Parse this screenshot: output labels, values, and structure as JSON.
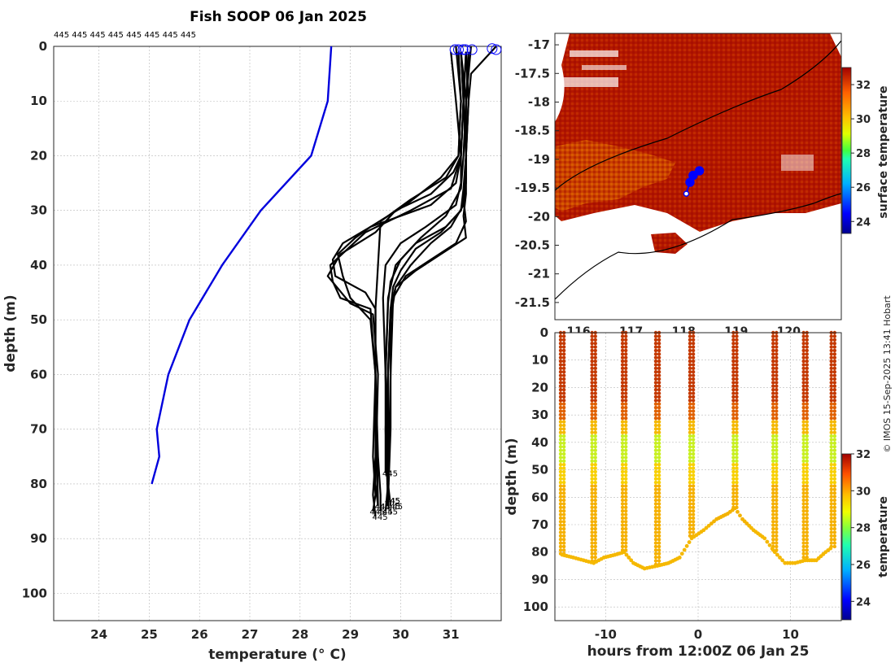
{
  "title": "Fish SOOP 06 Jan 2025",
  "top_labels": "445 445 445 445 445 445 445 445",
  "credit": "© IMOS 15-Sep-2025 13:41 Hobart",
  "profile_label": "445",
  "colors": {
    "climatology": "#0000dd",
    "profiles": "#000000",
    "marker": "#0000ff"
  },
  "chart_data": [
    {
      "type": "line",
      "name": "temperature-profiles",
      "xlabel": "temperature (° C)",
      "ylabel": "depth (m)",
      "xlim": [
        23.1,
        32.0
      ],
      "ylim": [
        105,
        0
      ],
      "xticks": [
        "24",
        "25",
        "26",
        "27",
        "28",
        "29",
        "30",
        "31"
      ],
      "yticks": [
        "0",
        "10",
        "20",
        "30",
        "40",
        "50",
        "60",
        "70",
        "80",
        "90",
        "100"
      ],
      "series": [
        {
          "name": "climatology",
          "x": [
            28.62,
            28.55,
            28.22,
            27.22,
            26.45,
            25.8,
            25.38,
            25.15,
            25.2,
            25.05
          ],
          "y": [
            0,
            10,
            20,
            30,
            40,
            50,
            60,
            70,
            75,
            80
          ]
        },
        {
          "name": "profile-1",
          "x": [
            31.1,
            31.2,
            31.15,
            30.9,
            30.2,
            29.6,
            29.55,
            29.5,
            29.5,
            29.55,
            29.6,
            29.6
          ],
          "y": [
            0,
            10,
            20,
            24,
            28,
            32,
            40,
            48,
            60,
            75,
            82,
            85
          ]
        },
        {
          "name": "profile-2",
          "x": [
            31.2,
            31.25,
            31.2,
            31.1,
            30.6,
            29.4,
            29.1,
            28.75,
            28.85,
            29.0,
            29.4,
            29.5,
            29.5,
            29.45,
            29.5
          ],
          "y": [
            1,
            10,
            20,
            25,
            29,
            33,
            35,
            38,
            42,
            46,
            50,
            60,
            75,
            82,
            86
          ]
        },
        {
          "name": "profile-3",
          "x": [
            31.3,
            31.25,
            31.2,
            31.0,
            30.2,
            29.3,
            28.95,
            28.6,
            28.65,
            28.8,
            29.4,
            29.5,
            29.45,
            29.5,
            29.45
          ],
          "y": [
            1,
            10,
            20,
            26,
            30,
            34,
            37,
            40,
            43,
            46,
            48,
            60,
            75,
            82,
            85
          ]
        },
        {
          "name": "profile-4",
          "x": [
            31.0,
            31.1,
            31.2,
            31.05,
            30.6,
            29.9,
            29.5,
            28.8,
            28.55,
            29.0,
            29.45,
            29.55,
            29.5,
            29.55
          ],
          "y": [
            1,
            10,
            20,
            23,
            27,
            30,
            34,
            38,
            42,
            47,
            49,
            60,
            80,
            84
          ]
        },
        {
          "name": "profile-5",
          "x": [
            31.3,
            31.35,
            31.3,
            31.3,
            31.2,
            30.8,
            30.3,
            30.0,
            29.85,
            29.8,
            29.75,
            29.75,
            29.8
          ],
          "y": [
            1,
            10,
            20,
            25,
            30,
            34,
            37,
            41,
            44,
            48,
            60,
            80,
            84
          ]
        },
        {
          "name": "profile-6",
          "x": [
            31.4,
            31.3,
            31.25,
            31.2,
            30.9,
            30.4,
            30.0,
            29.8,
            29.75,
            29.7,
            29.75,
            29.7
          ],
          "y": [
            0,
            10,
            20,
            26,
            31,
            35,
            39,
            43,
            47,
            60,
            80,
            85
          ]
        },
        {
          "name": "profile-7",
          "x": [
            31.2,
            31.25,
            31.3,
            31.3,
            31.25,
            31.0,
            30.6,
            30.2,
            29.9,
            29.8,
            29.7,
            29.75
          ],
          "y": [
            1,
            10,
            20,
            24,
            29,
            33,
            36,
            40,
            44,
            48,
            70,
            84
          ]
        },
        {
          "name": "profile-8",
          "x": [
            31.35,
            31.3,
            31.3,
            31.3,
            31.25,
            31.3,
            30.8,
            30.3,
            29.9,
            29.8,
            29.8,
            29.75
          ],
          "y": [
            1,
            10,
            20,
            27,
            31,
            35,
            38,
            41,
            44,
            50,
            70,
            83
          ]
        },
        {
          "name": "profile-9",
          "x": [
            31.9,
            31.4,
            31.35,
            31.3,
            31.25,
            31.3,
            31.1,
            30.6,
            30.1,
            29.85,
            29.8,
            29.75
          ],
          "y": [
            0,
            5,
            10,
            20,
            28,
            32,
            36,
            39,
            42,
            46,
            60,
            83
          ]
        },
        {
          "name": "profile-10",
          "x": [
            31.2,
            31.3,
            31.3,
            31.25,
            31.2,
            30.9,
            30.3,
            29.9,
            29.75,
            29.7,
            29.7
          ],
          "y": [
            1,
            10,
            20,
            26,
            30,
            33,
            36,
            40,
            46,
            60,
            78
          ]
        },
        {
          "name": "profile-11",
          "x": [
            31.3,
            31.25,
            31.2,
            31.2,
            31.1,
            30.5,
            30.0,
            29.7,
            29.65,
            29.7,
            29.75
          ],
          "y": [
            1,
            10,
            20,
            25,
            29,
            33,
            36,
            40,
            46,
            60,
            83
          ]
        },
        {
          "name": "profile-12",
          "x": [
            31.15,
            31.2,
            31.15,
            30.8,
            30.1,
            29.4,
            28.85,
            28.65,
            28.7,
            29.3,
            29.5,
            29.5,
            29.55
          ],
          "y": [
            1,
            10,
            20,
            24,
            29,
            33,
            36,
            39,
            42,
            45,
            48,
            60,
            84
          ]
        }
      ],
      "surface_markers": [
        {
          "x": 31.08,
          "y": 0.6
        },
        {
          "x": 31.15,
          "y": 0.6
        },
        {
          "x": 31.24,
          "y": 0.6
        },
        {
          "x": 31.29,
          "y": 0.6
        },
        {
          "x": 31.42,
          "y": 0.6
        },
        {
          "x": 31.82,
          "y": 0.4
        },
        {
          "x": 31.9,
          "y": 0.6
        }
      ]
    },
    {
      "type": "heatmap",
      "name": "surface-temperature-map",
      "colorbar_label": "surface temperature",
      "clim": [
        23.3,
        33
      ],
      "colorbar_ticks": [
        "24",
        "26",
        "28",
        "30",
        "32"
      ],
      "xticks": [
        "116",
        "117",
        "118",
        "119",
        "120"
      ],
      "yticks": [
        "-17",
        "-17.5",
        "-18",
        "-18.5",
        "-19",
        "-19.5",
        "-20",
        "-20.5",
        "-21",
        "-21.5"
      ],
      "xlim": [
        115.55,
        121.0
      ],
      "ylim": [
        -21.8,
        -16.8
      ],
      "track": [
        {
          "lon": 118.05,
          "lat": -19.6
        },
        {
          "lon": 118.12,
          "lat": -19.4
        },
        {
          "lon": 118.18,
          "lat": -19.28
        },
        {
          "lon": 118.3,
          "lat": -19.2
        }
      ]
    },
    {
      "type": "scatter",
      "name": "temperature-sections",
      "xlabel": "hours from 12:00Z 06 Jan 25",
      "ylabel": "depth (m)",
      "colorbar_label": "temperature",
      "clim": [
        23,
        32
      ],
      "colorbar_ticks": [
        "24",
        "26",
        "28",
        "30",
        "32"
      ],
      "xticks": [
        "-10",
        "0",
        "10"
      ],
      "yticks": [
        "0",
        "10",
        "20",
        "30",
        "40",
        "50",
        "60",
        "70",
        "80",
        "90",
        "100"
      ],
      "xlim": [
        -15.5,
        15.5
      ],
      "ylim": [
        105,
        0
      ],
      "casts": [
        {
          "t": -14.7,
          "max_depth": 81
        },
        {
          "t": -11.3,
          "max_depth": 84
        },
        {
          "t": -8.0,
          "max_depth": 80
        },
        {
          "t": -4.4,
          "max_depth": 85
        },
        {
          "t": -0.7,
          "max_depth": 75
        },
        {
          "t": 4.0,
          "max_depth": 64
        },
        {
          "t": 8.3,
          "max_depth": 80
        },
        {
          "t": 11.6,
          "max_depth": 83
        },
        {
          "t": 14.6,
          "max_depth": 78
        }
      ],
      "bottom_trace": [
        [
          -14.7,
          81
        ],
        [
          -13.5,
          82
        ],
        [
          -12.4,
          83
        ],
        [
          -11.3,
          84
        ],
        [
          -10.2,
          82
        ],
        [
          -9.0,
          81
        ],
        [
          -8.0,
          80
        ],
        [
          -7.0,
          84
        ],
        [
          -5.8,
          86
        ],
        [
          -4.4,
          85
        ],
        [
          -3.2,
          84
        ],
        [
          -2.0,
          82
        ],
        [
          -0.7,
          75
        ],
        [
          0.6,
          72
        ],
        [
          2.0,
          68
        ],
        [
          3.2,
          66
        ],
        [
          4.0,
          64
        ],
        [
          4.8,
          68
        ],
        [
          6.0,
          72
        ],
        [
          7.2,
          75
        ],
        [
          8.3,
          80
        ],
        [
          9.4,
          84
        ],
        [
          10.5,
          84
        ],
        [
          11.6,
          83
        ],
        [
          12.8,
          83
        ],
        [
          13.8,
          80
        ],
        [
          14.6,
          78
        ]
      ]
    }
  ]
}
